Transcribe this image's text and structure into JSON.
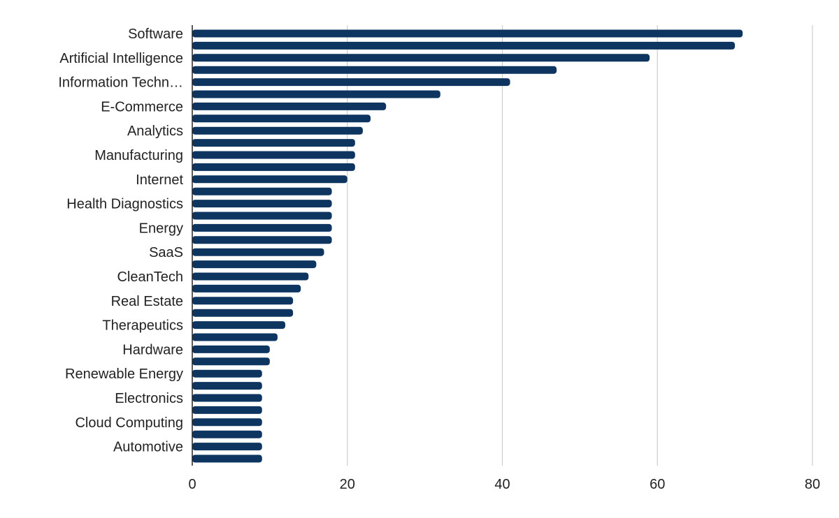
{
  "colors": {
    "bar": "#0e3560",
    "grid": "#cccccc",
    "axis": "#222222",
    "text": "#222222"
  },
  "chart_data": {
    "type": "bar",
    "orientation": "horizontal",
    "title": "",
    "xlabel": "",
    "ylabel": "",
    "xlim": [
      0,
      80
    ],
    "x_ticks": [
      0,
      20,
      40,
      60,
      80
    ],
    "grid": "vertical",
    "legend": "none",
    "category_labels_shown": [
      {
        "index": 0,
        "label": "Software"
      },
      {
        "index": 2,
        "label": "Artificial Intelligence"
      },
      {
        "index": 4,
        "label": "Information Techn…"
      },
      {
        "index": 6,
        "label": "E-Commerce"
      },
      {
        "index": 8,
        "label": "Analytics"
      },
      {
        "index": 10,
        "label": "Manufacturing"
      },
      {
        "index": 12,
        "label": "Internet"
      },
      {
        "index": 14,
        "label": "Health Diagnostics"
      },
      {
        "index": 16,
        "label": "Energy"
      },
      {
        "index": 18,
        "label": "SaaS"
      },
      {
        "index": 20,
        "label": "CleanTech"
      },
      {
        "index": 22,
        "label": "Real Estate"
      },
      {
        "index": 24,
        "label": "Therapeutics"
      },
      {
        "index": 26,
        "label": "Hardware"
      },
      {
        "index": 28,
        "label": "Renewable Energy"
      },
      {
        "index": 30,
        "label": "Electronics"
      },
      {
        "index": 32,
        "label": "Cloud Computing"
      },
      {
        "index": 34,
        "label": "Automotive"
      }
    ],
    "values": [
      71,
      70,
      59,
      47,
      41,
      32,
      25,
      23,
      22,
      21,
      21,
      21,
      20,
      18,
      18,
      18,
      18,
      18,
      17,
      16,
      15,
      14,
      13,
      13,
      12,
      11,
      10,
      10,
      9,
      9,
      9,
      9,
      9,
      9,
      9,
      9
    ]
  }
}
